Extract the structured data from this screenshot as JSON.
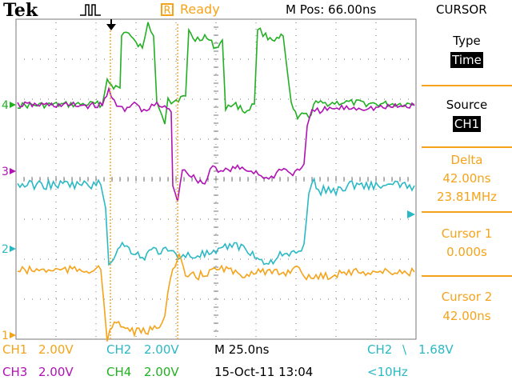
{
  "header": {
    "brand": "Tek",
    "run_state_icon": "R",
    "run_state": "Ready",
    "m_pos": "M Pos: 66.00ns",
    "menu_title": "CURSOR"
  },
  "side_menu": {
    "type_label": "Type",
    "type_value": "Time",
    "source_label": "Source",
    "source_value": "CH1",
    "delta_label": "Delta",
    "delta_time": "42.00ns",
    "delta_freq": "23.81MHz",
    "cursor1_label": "Cursor 1",
    "cursor1_value": "0.000s",
    "cursor2_label": "Cursor 2",
    "cursor2_value": "42.00ns"
  },
  "bottom": {
    "ch1": "CH1",
    "ch1_scale": "2.00V",
    "ch2": "CH2",
    "ch2_scale": "2.00V",
    "ch3": "CH3",
    "ch3_scale": "2.00V",
    "ch4": "CH4",
    "ch4_scale": "2.00V",
    "timebase": "M 25.0ns",
    "trigger_source": "CH2",
    "trigger_slope": "\\",
    "trigger_level": "1.68V",
    "date": "15-Oct-11 13:04",
    "freq": "<10Hz"
  },
  "markers": {
    "ch1": "1",
    "ch2": "2",
    "ch3": "3",
    "ch4": "4"
  },
  "colors": {
    "ch1": "#f5a31a",
    "ch2": "#2ab9c4",
    "ch3": "#b012b5",
    "ch4": "#22b022",
    "grid": "#777777",
    "cursor": "#f5a31a"
  },
  "icons": [
    "trigger-pulse-icon",
    "trigger-position-arrow-icon",
    "trigger-level-arrow-icon",
    "slope-falling-icon"
  ]
}
